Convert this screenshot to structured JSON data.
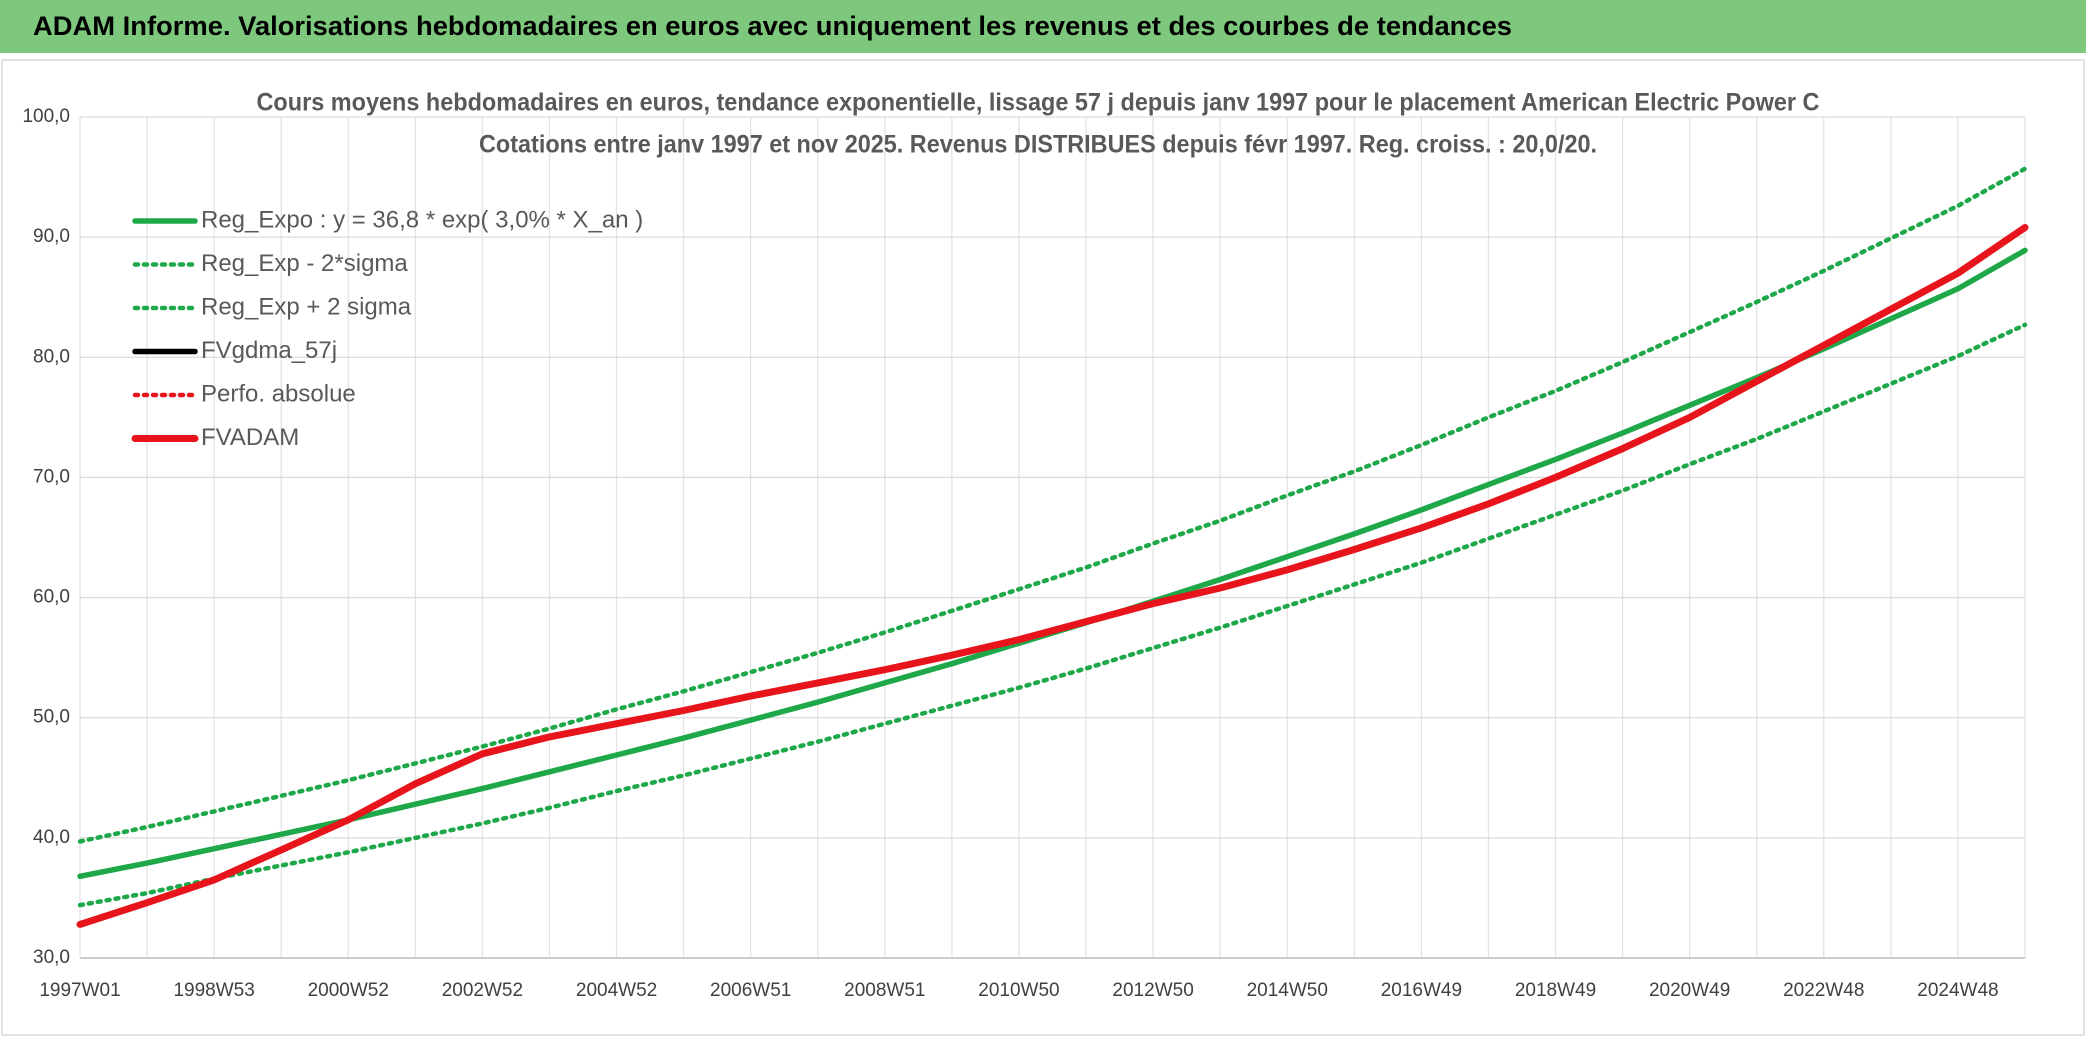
{
  "header": {
    "title": "ADAM Informe. Valorisations hebdomadaires en euros avec uniquement les revenus et des courbes de tendances"
  },
  "chart_data": {
    "type": "line",
    "title": "Cours moyens hebdomadaires en euros, tendance exponentielle, lissage 57 j depuis janv 1997 pour le placement American Electric Power C",
    "subtitle": "Cotations entre janv 1997 et nov 2025. Revenus DISTRIBUES depuis févr 1997. Reg. croiss. : 20,0/20.",
    "categories": [
      "1997W01",
      null,
      "1998W53",
      null,
      "2000W52",
      null,
      "2002W52",
      null,
      "2004W52",
      null,
      "2006W51",
      null,
      "2008W51",
      null,
      "2010W50",
      null,
      "2012W50",
      null,
      "2014W50",
      null,
      "2016W49",
      null,
      "2018W49",
      null,
      "2020W49",
      null,
      "2022W48",
      null,
      "2024W48",
      null
    ],
    "series": [
      {
        "name": "Reg_Expo : y = 36,8 * exp( 3,0% *  X_an )",
        "color": "#1fa84a",
        "style": "solid",
        "values": [
          36.8,
          37.9,
          39.1,
          40.3,
          41.5,
          42.8,
          44.1,
          45.5,
          46.9,
          48.3,
          49.8,
          51.3,
          52.9,
          54.5,
          56.2,
          57.9,
          59.7,
          61.5,
          63.4,
          65.3,
          67.3,
          69.4,
          71.5,
          73.7,
          76.0,
          78.3,
          80.7,
          83.2,
          85.7,
          88.9
        ]
      },
      {
        "name": "Reg_Exp - 2*sigma",
        "color": "#1fa84a",
        "style": "dotted",
        "values": [
          34.4,
          35.4,
          36.6,
          37.7,
          38.8,
          40.0,
          41.2,
          42.5,
          43.9,
          45.2,
          46.6,
          48.0,
          49.5,
          51.0,
          52.5,
          54.1,
          55.8,
          57.5,
          59.3,
          61.1,
          62.9,
          64.9,
          66.9,
          68.9,
          71.1,
          73.2,
          75.5,
          77.8,
          80.1,
          82.7
        ]
      },
      {
        "name": "Reg_Exp + 2 sigma",
        "color": "#1fa84a",
        "style": "dotted",
        "values": [
          39.7,
          40.9,
          42.2,
          43.5,
          44.8,
          46.2,
          47.6,
          49.1,
          50.7,
          52.2,
          53.8,
          55.4,
          57.1,
          58.9,
          60.7,
          62.5,
          64.5,
          66.4,
          68.5,
          70.5,
          72.7,
          75.0,
          77.2,
          79.6,
          82.1,
          84.6,
          87.2,
          89.9,
          92.6,
          95.7
        ]
      },
      {
        "name": "FVgdma_57j",
        "color": "#000000",
        "style": "solid",
        "values": [
          32.8,
          34.6,
          36.5,
          39.0,
          41.5,
          44.5,
          47.0,
          48.4,
          49.5,
          50.6,
          51.8,
          52.9,
          54.0,
          55.2,
          56.5,
          58.0,
          59.5,
          60.8,
          62.3,
          64.0,
          65.8,
          67.8,
          70.0,
          72.4,
          75.0,
          78.0,
          81.0,
          84.0,
          87.0,
          90.8
        ]
      },
      {
        "name": "Perfo. absolue",
        "color": "#e8141c",
        "style": "dotted",
        "values": [
          32.8,
          34.6,
          36.5,
          39.0,
          41.5,
          44.5,
          47.0,
          48.4,
          49.5,
          50.6,
          51.8,
          52.9,
          54.0,
          55.2,
          56.5,
          58.0,
          59.5,
          60.8,
          62.3,
          64.0,
          65.8,
          67.8,
          70.0,
          72.4,
          75.0,
          78.0,
          81.0,
          84.0,
          87.0,
          90.8
        ]
      },
      {
        "name": "FVADAM",
        "color": "#e8141c",
        "style": "solid",
        "values": [
          32.8,
          34.6,
          36.5,
          39.0,
          41.5,
          44.5,
          47.0,
          48.4,
          49.5,
          50.6,
          51.8,
          52.9,
          54.0,
          55.2,
          56.5,
          58.0,
          59.5,
          60.8,
          62.3,
          64.0,
          65.8,
          67.8,
          70.0,
          72.4,
          75.0,
          78.0,
          81.0,
          84.0,
          87.0,
          90.8
        ]
      }
    ],
    "ylim": [
      30,
      100
    ],
    "yticks": [
      {
        "value": 30,
        "label": "30,0"
      },
      {
        "value": 40,
        "label": "40,0"
      },
      {
        "value": 50,
        "label": "50,0"
      },
      {
        "value": 60,
        "label": "60,0"
      },
      {
        "value": 70,
        "label": "70,0"
      },
      {
        "value": 80,
        "label": "80,0"
      },
      {
        "value": 90,
        "label": "90,0"
      },
      {
        "value": 100,
        "label": "100,0"
      }
    ],
    "grid": true,
    "legend": "top-left"
  }
}
